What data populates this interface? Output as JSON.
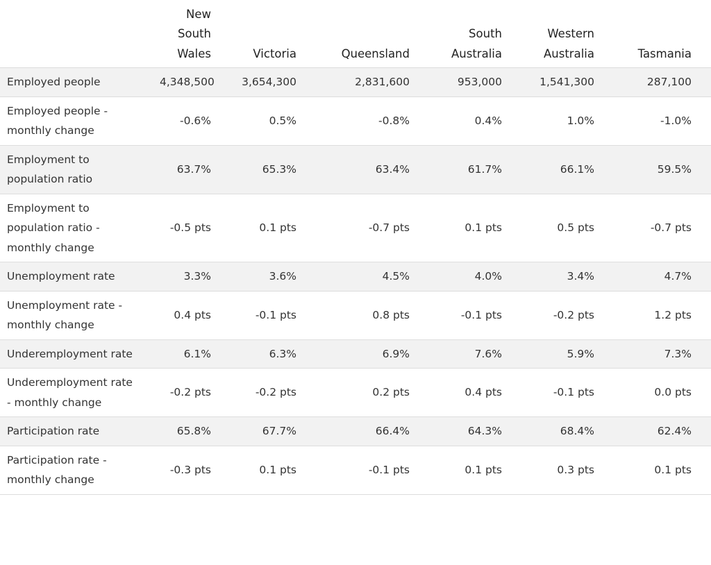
{
  "table": {
    "header": [
      "New South Wales",
      "Victoria",
      "Queensland",
      "South Australia",
      "Western Australia",
      "Tasmania"
    ],
    "rows": [
      [
        "Employed people",
        "4,348,500",
        "3,654,300",
        "2,831,600",
        "953,000",
        "1,541,300",
        "287,100"
      ],
      [
        "Employed people - monthly change",
        "-0.6%",
        "0.5%",
        "-0.8%",
        "0.4%",
        "1.0%",
        "-1.0%"
      ],
      [
        "Employment to population ratio",
        "63.7%",
        "65.3%",
        "63.4%",
        "61.7%",
        "66.1%",
        "59.5%"
      ],
      [
        "Employment to population ratio - monthly change",
        "-0.5 pts",
        "0.1 pts",
        "-0.7 pts",
        "0.1 pts",
        "0.5 pts",
        "-0.7 pts"
      ],
      [
        "Unemployment rate",
        "3.3%",
        "3.6%",
        "4.5%",
        "4.0%",
        "3.4%",
        "4.7%"
      ],
      [
        "Unemployment rate - monthly change",
        "0.4 pts",
        "-0.1 pts",
        "0.8 pts",
        "-0.1 pts",
        "-0.2 pts",
        "1.2 pts"
      ],
      [
        "Underemployment rate",
        "6.1%",
        "6.3%",
        "6.9%",
        "7.6%",
        "5.9%",
        "7.3%"
      ],
      [
        "Underemployment rate - monthly change",
        "-0.2 pts",
        "-0.2 pts",
        "0.2 pts",
        "0.4 pts",
        "-0.1 pts",
        "0.0 pts"
      ],
      [
        "Participation rate",
        "65.8%",
        "67.7%",
        "66.4%",
        "64.3%",
        "68.4%",
        "62.4%"
      ],
      [
        "Participation rate - monthly change",
        "-0.3 pts",
        "0.1 pts",
        "-0.1 pts",
        "0.1 pts",
        "0.3 pts",
        "0.1 pts"
      ]
    ]
  }
}
